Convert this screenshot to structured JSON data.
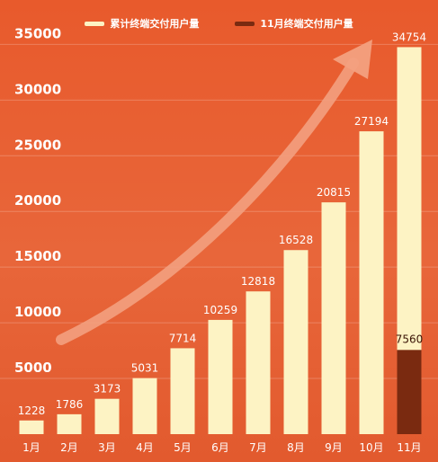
{
  "chart_data": {
    "type": "bar",
    "categories": [
      "1月",
      "2月",
      "3月",
      "4月",
      "5月",
      "6月",
      "7月",
      "8月",
      "9月",
      "10月",
      "11月"
    ],
    "series": [
      {
        "name": "累计终端交付用户量",
        "values": [
          1228,
          1786,
          3173,
          5031,
          7714,
          10259,
          12818,
          16528,
          20815,
          27194,
          34754
        ]
      },
      {
        "name": "11月终端交付用户量",
        "values": [
          null,
          null,
          null,
          null,
          null,
          null,
          null,
          null,
          null,
          null,
          7560
        ]
      }
    ],
    "yticks": [
      5000,
      10000,
      15000,
      20000,
      25000,
      30000,
      35000
    ],
    "ylim": [
      0,
      36000
    ],
    "grid": true,
    "legend_position": "top-center",
    "colors": {
      "cumulative_bar": "#fdf3c4",
      "monthly_bar": "#7a2a10",
      "arrow": "#f3a080",
      "text": "#ffffff",
      "background": "#e8623a"
    }
  }
}
